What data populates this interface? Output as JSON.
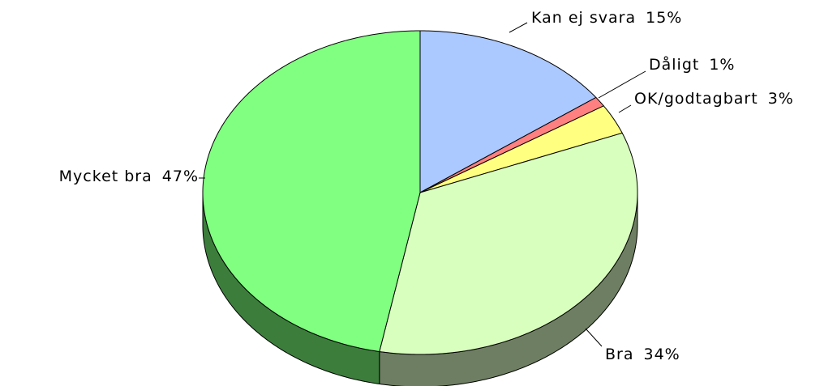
{
  "chart_data": {
    "type": "pie",
    "categories": [
      "Kan ej svara",
      "Dåligt",
      "OK/godtagbart",
      "Bra",
      "Mycket bra"
    ],
    "values": [
      15,
      1,
      3,
      34,
      47
    ],
    "value_labels": [
      "15%",
      "1%",
      "3%",
      "34%",
      "47%"
    ],
    "colors": [
      "#abc8ff",
      "#ff8080",
      "#ffff80",
      "#d9ffbf",
      "#80ff80"
    ],
    "side_colors": [
      "#6b7ea0",
      "#a05050",
      "#a0a050",
      "#6e7e62",
      "#3c7d3c"
    ]
  }
}
